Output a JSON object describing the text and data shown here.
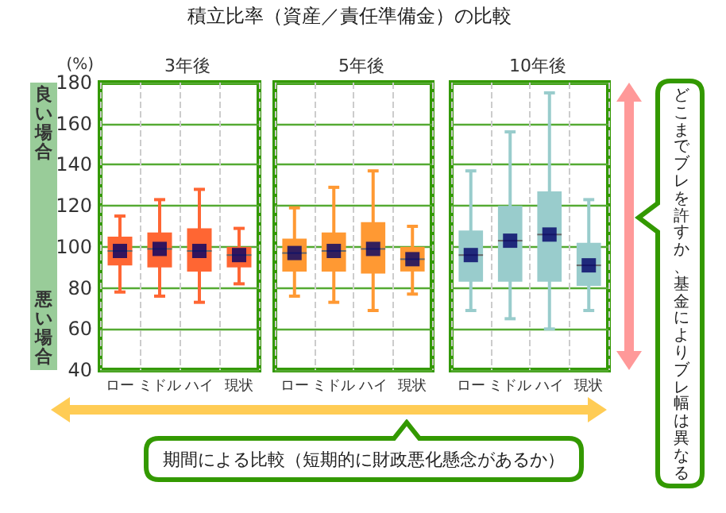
{
  "chart_data": [
    {
      "type": "box",
      "title": "積立比率（資産／責任準備金）の比較",
      "subtitle": "3年後",
      "ylabel": "(%)",
      "categories": [
        "ロー",
        "ミドル",
        "ハイ",
        "現状"
      ],
      "ylim": [
        40,
        180
      ],
      "yticks": [
        40,
        60,
        80,
        100,
        120,
        140,
        160,
        180
      ],
      "grid": true,
      "marker": "square",
      "annotations": [
        "良い場合",
        "悪い場合",
        "期間による比較（短期的に財政悪化懸念があるか）",
        "どこまでブレを許すか、基金によりブレ幅は異なる"
      ],
      "series": [
        {
          "color": "#ff6633",
          "boxes": [
            {
              "low": 78,
              "q1": 91,
              "median": 98,
              "q3": 105,
              "high": 115
            },
            {
              "low": 76,
              "q1": 90,
              "median": 99,
              "q3": 107,
              "high": 123
            },
            {
              "low": 73,
              "q1": 88,
              "median": 98,
              "q3": 109,
              "high": 128
            },
            {
              "low": 82,
              "q1": 90,
              "median": 96,
              "q3": 100,
              "high": 109
            }
          ]
        },
        {
          "type": "scatter",
          "color": "#000066",
          "x": [
            "ロー",
            "ミドル",
            "ハイ",
            "現状"
          ],
          "values": [
            98,
            99,
            98,
            96
          ]
        }
      ]
    },
    {
      "type": "box",
      "subtitle": "5年後",
      "categories": [
        "ロー",
        "ミドル",
        "ハイ",
        "現状"
      ],
      "ylim": [
        40,
        180
      ],
      "yticks": [
        40,
        60,
        80,
        100,
        120,
        140,
        160,
        180
      ],
      "grid": true,
      "tick_labels": "x",
      "marker": "square",
      "series": [
        {
          "color": "#ff9933",
          "boxes": [
            {
              "low": 76,
              "q1": 88,
              "median": 97,
              "q3": 104,
              "high": 119
            },
            {
              "low": 73,
              "q1": 88,
              "median": 98,
              "q3": 107,
              "high": 129
            },
            {
              "low": 69,
              "q1": 87,
              "median": 99,
              "q3": 112,
              "high": 137
            },
            {
              "low": 77,
              "q1": 88,
              "median": 94,
              "q3": 100,
              "high": 110
            }
          ]
        },
        {
          "type": "scatter",
          "color": "#000066",
          "x": [
            "ロー",
            "ミドル",
            "ハイ",
            "現状"
          ],
          "values": [
            97,
            98,
            99,
            94
          ]
        }
      ]
    },
    {
      "type": "box",
      "subtitle": "10年後",
      "categories": [
        "ロー",
        "ミドル",
        "ハイ",
        "現状"
      ],
      "ylim": [
        40,
        180
      ],
      "yticks": [
        40,
        60,
        80,
        100,
        120,
        140,
        160,
        180
      ],
      "grid": true,
      "tick_labels": "x",
      "marker": "square",
      "series": [
        {
          "color": "#99cccc",
          "boxes": [
            {
              "low": 69,
              "q1": 83,
              "median": 96,
              "q3": 108,
              "high": 137
            },
            {
              "low": 65,
              "q1": 83,
              "median": 103,
              "q3": 120,
              "high": 156
            },
            {
              "low": 60,
              "q1": 83,
              "median": 106,
              "q3": 127,
              "high": 175
            },
            {
              "low": 69,
              "q1": 81,
              "median": 91,
              "q3": 102,
              "high": 123
            }
          ]
        },
        {
          "type": "scatter",
          "color": "#000066",
          "x": [
            "ロー",
            "ミドル",
            "ハイ",
            "現状"
          ],
          "values": [
            96,
            103,
            106,
            91
          ]
        }
      ]
    }
  ]
}
